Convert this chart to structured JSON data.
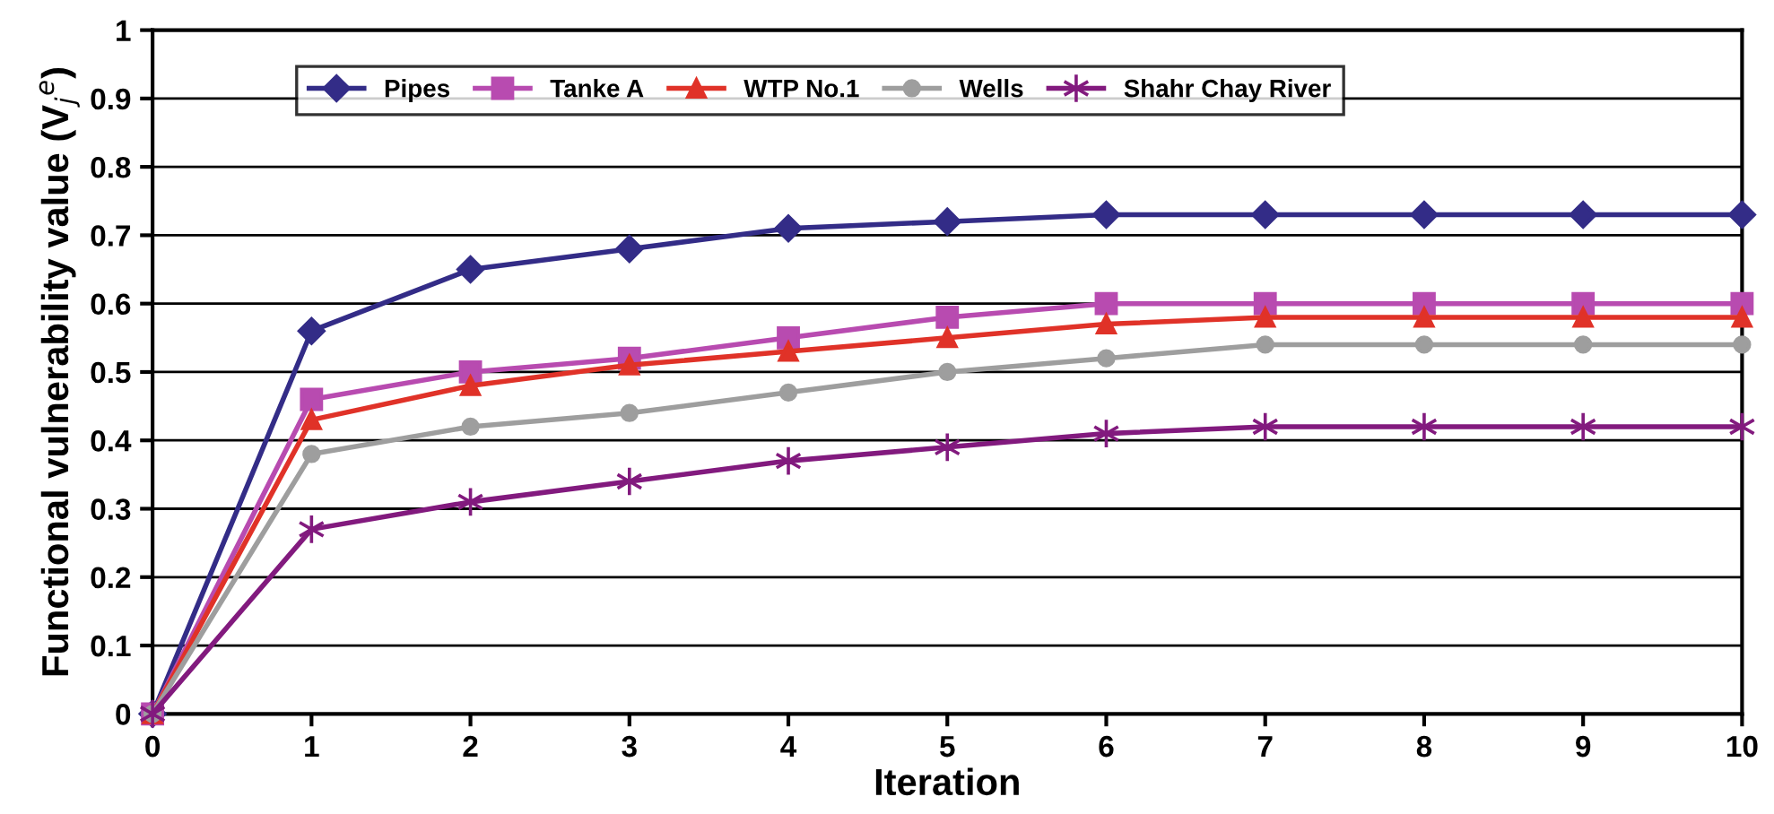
{
  "chart_data": {
    "type": "line",
    "xlabel": "Iteration",
    "ylabel": "Functional vulnerability value (V$_{j}$$^{e}$)",
    "x": [
      0,
      1,
      2,
      3,
      4,
      5,
      6,
      7,
      8,
      9,
      10
    ],
    "series": [
      {
        "name": "Pipes",
        "color": "#332c87",
        "marker": "diamond",
        "values": [
          0,
          0.56,
          0.65,
          0.68,
          0.71,
          0.72,
          0.73,
          0.73,
          0.73,
          0.73,
          0.73
        ]
      },
      {
        "name": "Tanke A",
        "color": "#b84bb0",
        "marker": "square",
        "values": [
          0,
          0.46,
          0.5,
          0.52,
          0.55,
          0.58,
          0.6,
          0.6,
          0.6,
          0.6,
          0.6
        ]
      },
      {
        "name": "WTP No.1",
        "color": "#e03228",
        "marker": "triangle",
        "values": [
          0,
          0.43,
          0.48,
          0.51,
          0.53,
          0.55,
          0.57,
          0.58,
          0.58,
          0.58,
          0.58
        ]
      },
      {
        "name": "Wells",
        "color": "#9e9e9e",
        "marker": "circle",
        "values": [
          0,
          0.38,
          0.42,
          0.44,
          0.47,
          0.5,
          0.52,
          0.54,
          0.54,
          0.54,
          0.54
        ]
      },
      {
        "name": "Shahr Chay River",
        "color": "#821a7e",
        "marker": "cross",
        "values": [
          0,
          0.27,
          0.31,
          0.34,
          0.37,
          0.39,
          0.41,
          0.42,
          0.42,
          0.42,
          0.42
        ]
      }
    ],
    "xlim": [
      0,
      10
    ],
    "xticks": [
      0,
      1,
      2,
      3,
      4,
      5,
      6,
      7,
      8,
      9,
      10
    ],
    "ylim": [
      0,
      1
    ],
    "yticks": [
      0,
      0.1,
      0.2,
      0.3,
      0.4,
      0.5,
      0.6,
      0.7,
      0.8,
      0.9,
      1
    ],
    "grid": "y",
    "legend": "top",
    "line_style": "solid"
  }
}
